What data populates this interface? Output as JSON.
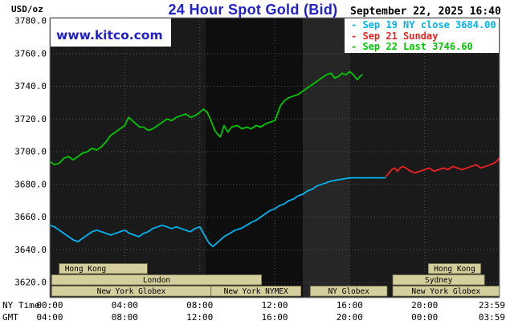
{
  "header": {
    "timestamp": "September 22, 2025 16:40",
    "watermark": "www.kitco.com",
    "unit_label": "USD/oz"
  },
  "legend": {
    "position": "top-right",
    "items": [
      {
        "color": "#00b4f0",
        "label": "- Sep 19 NY close 3684.00"
      },
      {
        "color": "#ee2222",
        "label": "- Sep 21 Sunday"
      },
      {
        "color": "#00c800",
        "label": "- Sep 22 Last 3746.60"
      }
    ]
  },
  "chart_data": {
    "type": "line",
    "title": "24 Hour Spot Gold (Bid)",
    "xlabel": "",
    "ylabel": "USD/oz",
    "ylim": [
      3620,
      3780
    ],
    "xlim_hours": [
      0,
      24
    ],
    "grid": true,
    "legend_position": "top-right",
    "x_axis_rows": {
      "ny": "NY Time",
      "gmt": "GMT"
    },
    "y_ticks": [
      "3780.0",
      "3760.0",
      "3740.0",
      "3720.0",
      "3700.0",
      "3680.0",
      "3660.0",
      "3640.0",
      "3620.0"
    ],
    "x_ticks": [
      {
        "t": 0,
        "ny": "00:00",
        "gmt": "04:00"
      },
      {
        "t": 4,
        "ny": "04:00",
        "gmt": "08:00"
      },
      {
        "t": 8,
        "ny": "08:00",
        "gmt": "12:00"
      },
      {
        "t": 12,
        "ny": "12:00",
        "gmt": "16:00"
      },
      {
        "t": 16,
        "ny": "16:00",
        "gmt": "20:00"
      },
      {
        "t": 20,
        "ny": "20:00",
        "gmt": "00:00"
      },
      {
        "t": 24,
        "ny": "23:59",
        "gmt": "03:59"
      }
    ],
    "bands": [
      {
        "from": 8.33,
        "to": 13.5,
        "color": "#0e0e0e"
      },
      {
        "from": 13.5,
        "to": 16.0,
        "color": "#262626"
      }
    ],
    "sessions": [
      {
        "row": 0,
        "label": "Hong Kong",
        "start": 0.5,
        "end": 5.2,
        "align": "left"
      },
      {
        "row": 0,
        "label": "Hong Kong",
        "start": 20.2,
        "end": 23.0,
        "align": "center"
      },
      {
        "row": 1,
        "label": "London",
        "start": 0.1,
        "end": 11.3,
        "align": "center"
      },
      {
        "row": 1,
        "label": "Sydney",
        "start": 18.3,
        "end": 23.2,
        "align": "center"
      },
      {
        "row": 2,
        "label": "New York Globex",
        "start": 0.1,
        "end": 8.6,
        "align": "center"
      },
      {
        "row": 2,
        "label": "New York NYMEX",
        "start": 8.6,
        "end": 13.4,
        "align": "center"
      },
      {
        "row": 2,
        "label": "NY Globex",
        "start": 13.9,
        "end": 18.0,
        "align": "center"
      },
      {
        "row": 2,
        "label": "New York Globex",
        "start": 18.3,
        "end": 23.98,
        "align": "center"
      }
    ],
    "series": [
      {
        "name": "Sep 19 NY close 3684.00",
        "color": "#00b4f0",
        "points": [
          [
            0,
            3655
          ],
          [
            0.25,
            3654
          ],
          [
            0.5,
            3652
          ],
          [
            0.75,
            3650
          ],
          [
            1,
            3648
          ],
          [
            1.25,
            3646
          ],
          [
            1.5,
            3645
          ],
          [
            1.75,
            3647
          ],
          [
            2,
            3649
          ],
          [
            2.25,
            3651
          ],
          [
            2.5,
            3652
          ],
          [
            2.75,
            3651
          ],
          [
            3,
            3650
          ],
          [
            3.25,
            3649
          ],
          [
            3.5,
            3650
          ],
          [
            3.75,
            3651
          ],
          [
            4,
            3652
          ],
          [
            4.25,
            3650
          ],
          [
            4.5,
            3649
          ],
          [
            4.75,
            3648
          ],
          [
            5,
            3650
          ],
          [
            5.25,
            3651
          ],
          [
            5.5,
            3653
          ],
          [
            5.75,
            3654
          ],
          [
            6,
            3655
          ],
          [
            6.25,
            3654
          ],
          [
            6.5,
            3653
          ],
          [
            6.75,
            3654
          ],
          [
            7,
            3653
          ],
          [
            7.25,
            3652
          ],
          [
            7.5,
            3651
          ],
          [
            7.75,
            3653
          ],
          [
            8,
            3654
          ],
          [
            8.25,
            3649
          ],
          [
            8.5,
            3644
          ],
          [
            8.7,
            3642
          ],
          [
            8.9,
            3644
          ],
          [
            9.1,
            3646
          ],
          [
            9.3,
            3648
          ],
          [
            9.6,
            3650
          ],
          [
            9.9,
            3652
          ],
          [
            10.2,
            3653
          ],
          [
            10.5,
            3655
          ],
          [
            10.8,
            3657
          ],
          [
            11,
            3658
          ],
          [
            11.25,
            3660
          ],
          [
            11.5,
            3662
          ],
          [
            11.75,
            3664
          ],
          [
            12,
            3665
          ],
          [
            12.25,
            3667
          ],
          [
            12.5,
            3668
          ],
          [
            12.75,
            3670
          ],
          [
            13,
            3671
          ],
          [
            13.25,
            3673
          ],
          [
            13.5,
            3674
          ],
          [
            13.75,
            3676
          ],
          [
            14,
            3677
          ],
          [
            14.25,
            3679
          ],
          [
            14.5,
            3680
          ],
          [
            14.75,
            3681
          ],
          [
            15,
            3682
          ],
          [
            15.5,
            3683
          ],
          [
            16,
            3684
          ],
          [
            16.5,
            3684
          ],
          [
            17,
            3684
          ],
          [
            17.5,
            3684
          ],
          [
            17.9,
            3684
          ]
        ]
      },
      {
        "name": "Sep 21 Sunday",
        "color": "#ee2222",
        "points": [
          [
            17.95,
            3685
          ],
          [
            18.1,
            3687
          ],
          [
            18.25,
            3689
          ],
          [
            18.4,
            3690
          ],
          [
            18.55,
            3688
          ],
          [
            18.7,
            3690
          ],
          [
            18.85,
            3691
          ],
          [
            19,
            3690
          ],
          [
            19.25,
            3688
          ],
          [
            19.5,
            3687
          ],
          [
            19.75,
            3688
          ],
          [
            20,
            3689
          ],
          [
            20.25,
            3690
          ],
          [
            20.5,
            3688
          ],
          [
            20.75,
            3689
          ],
          [
            21,
            3690
          ],
          [
            21.25,
            3689
          ],
          [
            21.5,
            3691
          ],
          [
            21.75,
            3690
          ],
          [
            22,
            3689
          ],
          [
            22.25,
            3690
          ],
          [
            22.5,
            3691
          ],
          [
            22.75,
            3692
          ],
          [
            23,
            3690
          ],
          [
            23.25,
            3691
          ],
          [
            23.5,
            3692
          ],
          [
            23.7,
            3693
          ],
          [
            23.85,
            3694
          ],
          [
            23.98,
            3696
          ]
        ]
      },
      {
        "name": "Sep 22 Last 3746.60",
        "color": "#00c800",
        "points": [
          [
            0,
            3694
          ],
          [
            0.25,
            3692
          ],
          [
            0.5,
            3693
          ],
          [
            0.75,
            3696
          ],
          [
            1,
            3697
          ],
          [
            1.25,
            3695
          ],
          [
            1.5,
            3697
          ],
          [
            1.75,
            3699
          ],
          [
            2,
            3700
          ],
          [
            2.25,
            3702
          ],
          [
            2.5,
            3701
          ],
          [
            2.75,
            3703
          ],
          [
            3,
            3706
          ],
          [
            3.25,
            3710
          ],
          [
            3.5,
            3712
          ],
          [
            3.75,
            3714
          ],
          [
            4,
            3716
          ],
          [
            4.2,
            3721
          ],
          [
            4.4,
            3719
          ],
          [
            4.6,
            3717
          ],
          [
            4.8,
            3715
          ],
          [
            5,
            3715
          ],
          [
            5.25,
            3713
          ],
          [
            5.5,
            3714
          ],
          [
            5.75,
            3716
          ],
          [
            6,
            3718
          ],
          [
            6.25,
            3720
          ],
          [
            6.5,
            3719
          ],
          [
            6.75,
            3721
          ],
          [
            7,
            3722
          ],
          [
            7.25,
            3723
          ],
          [
            7.5,
            3721
          ],
          [
            7.75,
            3722
          ],
          [
            8,
            3724
          ],
          [
            8.2,
            3726
          ],
          [
            8.4,
            3724
          ],
          [
            8.6,
            3719
          ],
          [
            8.8,
            3713
          ],
          [
            9,
            3710
          ],
          [
            9.1,
            3709
          ],
          [
            9.3,
            3716
          ],
          [
            9.5,
            3712
          ],
          [
            9.7,
            3715
          ],
          [
            10,
            3716
          ],
          [
            10.25,
            3714
          ],
          [
            10.5,
            3715
          ],
          [
            10.75,
            3714
          ],
          [
            11,
            3716
          ],
          [
            11.25,
            3715
          ],
          [
            11.5,
            3717
          ],
          [
            11.75,
            3718
          ],
          [
            12,
            3719
          ],
          [
            12.15,
            3723
          ],
          [
            12.3,
            3728
          ],
          [
            12.5,
            3731
          ],
          [
            12.75,
            3733
          ],
          [
            13,
            3734
          ],
          [
            13.25,
            3735
          ],
          [
            13.5,
            3737
          ],
          [
            13.75,
            3739
          ],
          [
            14,
            3741
          ],
          [
            14.25,
            3743
          ],
          [
            14.5,
            3745
          ],
          [
            14.75,
            3747
          ],
          [
            15,
            3748
          ],
          [
            15.2,
            3745
          ],
          [
            15.4,
            3746
          ],
          [
            15.6,
            3748
          ],
          [
            15.8,
            3747
          ],
          [
            16,
            3749
          ],
          [
            16.2,
            3747
          ],
          [
            16.4,
            3744
          ],
          [
            16.55,
            3746
          ],
          [
            16.67,
            3747
          ]
        ]
      }
    ],
    "colors": {
      "plot_bg": "#1a1a1a",
      "grid": "#565656",
      "border": "#8c8c8c",
      "session_fill": "#d5ce9d",
      "session_border": "#726c4e",
      "session_text": "#000000",
      "title_blue": "#2020cc"
    }
  }
}
